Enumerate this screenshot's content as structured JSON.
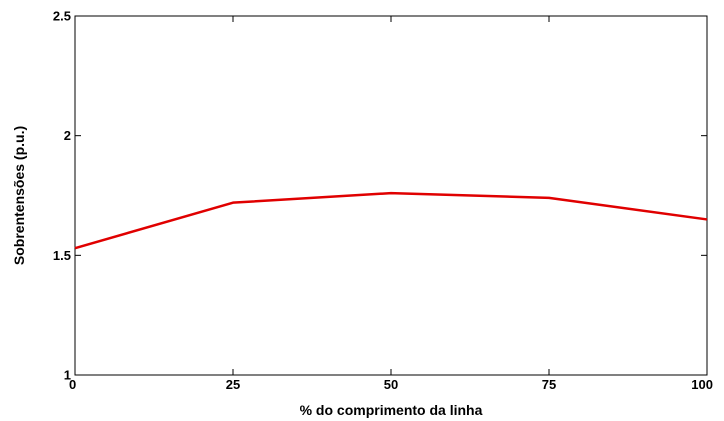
{
  "chart_data": {
    "type": "line",
    "title": "",
    "xlabel": "% do comprimento da linha",
    "ylabel": "Sobrentensões (p.u.)",
    "xlim": [
      0,
      100
    ],
    "ylim": [
      1,
      2.5
    ],
    "xticks": [
      0,
      25,
      50,
      75,
      100
    ],
    "yticks": [
      1,
      1.5,
      2,
      2.5
    ],
    "xtick_labels": [
      "0",
      "25",
      "50",
      "75",
      "100"
    ],
    "ytick_labels": [
      "1",
      "1.5",
      "2",
      "2.5"
    ],
    "grid": false,
    "series": [
      {
        "color": "#e00000",
        "x": [
          0,
          25,
          50,
          75,
          100
        ],
        "y": [
          1.53,
          1.72,
          1.76,
          1.74,
          1.65
        ]
      }
    ]
  }
}
